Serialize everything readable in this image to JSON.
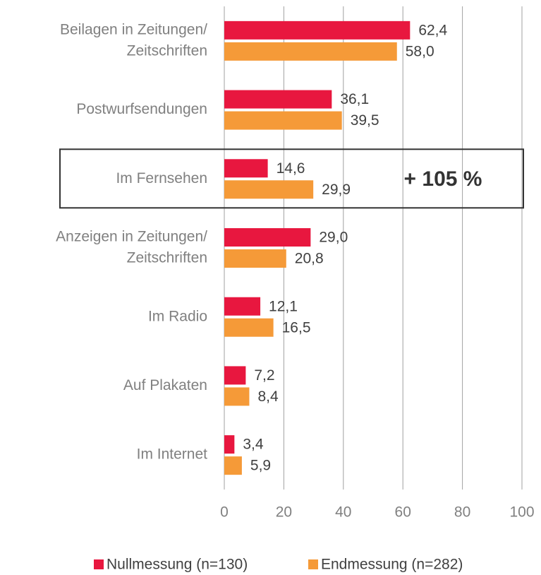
{
  "chart_data": {
    "type": "barh",
    "categories": [
      [
        "Beilagen in Zeitungen/",
        "Zeitschriften"
      ],
      [
        "Postwurfsendungen"
      ],
      [
        "Im Fernsehen"
      ],
      [
        "Anzeigen in Zeitungen/",
        "Zeitschriften"
      ],
      [
        "Im Radio"
      ],
      [
        "Auf Plakaten"
      ],
      [
        "Im Internet"
      ]
    ],
    "series": [
      {
        "name": "Nullmessung (n=130)",
        "color": "#e8173f",
        "values": [
          62.4,
          36.1,
          14.6,
          29.0,
          12.1,
          7.2,
          3.4
        ],
        "value_labels": [
          "62,4",
          "36,1",
          "14,6",
          "29,0",
          "12,1",
          "7,2",
          "3,4"
        ]
      },
      {
        "name": "Endmessung (n=282)",
        "color": "#f59a38",
        "values": [
          58.0,
          39.5,
          29.9,
          20.8,
          16.5,
          8.4,
          5.9
        ],
        "value_labels": [
          "58,0",
          "39,5",
          "29,9",
          "20,8",
          "16,5",
          "8,4",
          "5,9"
        ]
      }
    ],
    "xlim": [
      0,
      100
    ],
    "xticks": [
      0,
      20,
      40,
      60,
      80,
      100
    ],
    "grid": true,
    "annotation": {
      "category": 2,
      "text": "+ 105 %"
    },
    "legend": "bottom"
  }
}
